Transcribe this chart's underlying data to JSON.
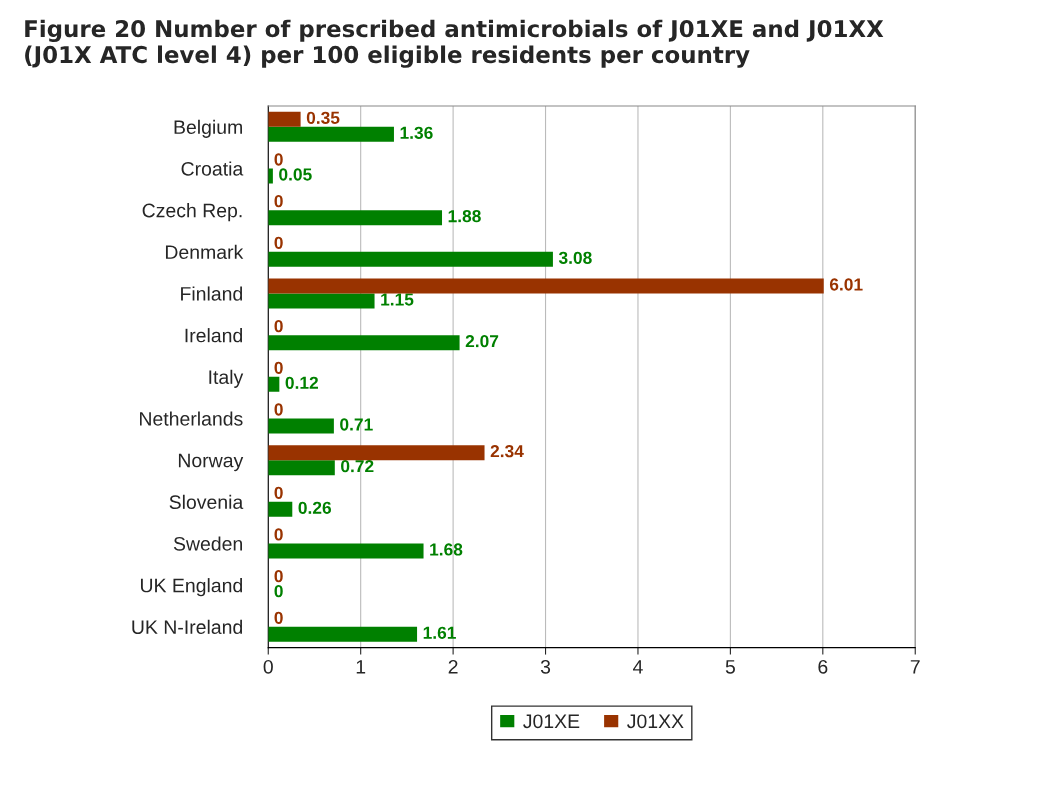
{
  "chart_data": {
    "type": "bar",
    "orientation": "horizontal",
    "title": "Figure 20 Number of prescribed antimicrobials of J01XE and J01XX\n(J01X ATC level 4) per 100 eligible residents per country",
    "categories": [
      "Belgium",
      "Croatia",
      "Czech Rep.",
      "Denmark",
      "Finland",
      "Ireland",
      "Italy",
      "Netherlands",
      "Norway",
      "Slovenia",
      "Sweden",
      "UK England",
      "UK N-Ireland"
    ],
    "series": [
      {
        "name": "J01XE",
        "color": "#008000",
        "values": [
          1.36,
          0.05,
          1.88,
          3.08,
          1.15,
          2.07,
          0.12,
          0.71,
          0.72,
          0.26,
          1.68,
          0,
          1.61
        ]
      },
      {
        "name": "J01XX",
        "color": "#993300",
        "values": [
          0.35,
          0,
          0,
          0,
          6.01,
          0,
          0,
          0,
          2.34,
          0,
          0,
          0,
          0
        ]
      }
    ],
    "xlim": [
      0,
      7
    ],
    "xticks": [
      0,
      1,
      2,
      3,
      4,
      5,
      6,
      7
    ],
    "grid": "x",
    "legend": "bottom",
    "data_labels": true
  }
}
